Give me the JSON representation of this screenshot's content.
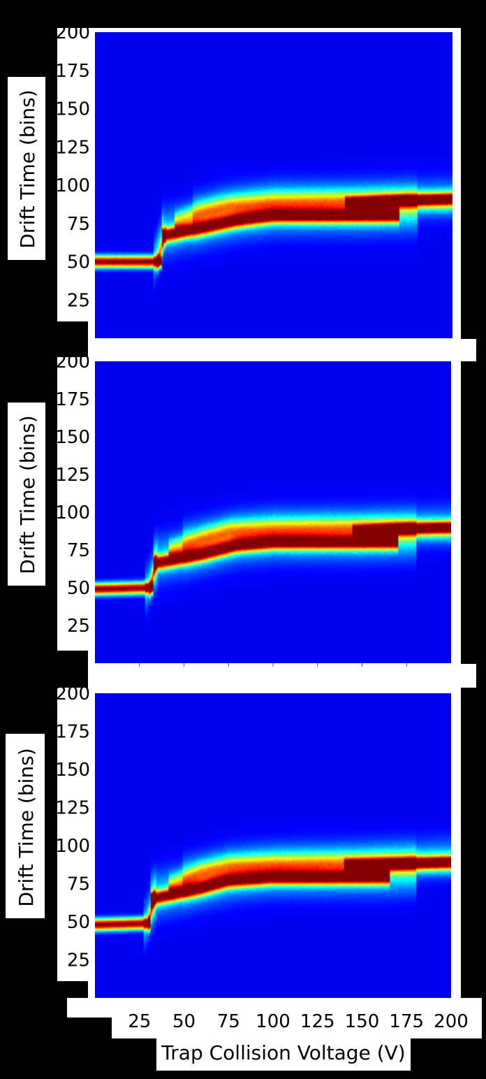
{
  "figure": {
    "ylabel": "Drift Time (bins)",
    "xlabel": "Trap Collision Voltage (V)"
  },
  "colors": {
    "background": "#000000",
    "panel_frame": "#ffffff",
    "heatmap_low": "#00007f",
    "heatmap_high": "#800000",
    "colormap": "jet"
  },
  "chart_data": [
    {
      "type": "heatmap",
      "panel": "top",
      "ylabel": "Drift Time (bins)",
      "xlim": [
        0,
        200
      ],
      "ylim": [
        0,
        200
      ],
      "yticks": [
        25,
        50,
        75,
        100,
        125,
        150,
        175,
        200
      ],
      "ytick_labels": [
        "25",
        "50",
        "75",
        "100",
        "125",
        "150",
        "175",
        "200"
      ],
      "features": [
        {
          "x": [
            0,
            37
          ],
          "y": [
            50,
            50
          ],
          "intensity": 1.0,
          "width": 2.6
        },
        {
          "x": [
            35,
            39
          ],
          "y": [
            50,
            67
          ],
          "intensity": 0.5,
          "width": 4.0
        },
        {
          "x": [
            33,
            38
          ],
          "y": [
            50,
            68
          ],
          "intensity": 0.22,
          "width": 9.0
        },
        {
          "x": [
            38,
            60,
            80,
            100,
            150,
            170
          ],
          "y": [
            67,
            72,
            77,
            80,
            80,
            80
          ],
          "intensity": 0.95,
          "width": 3.0
        },
        {
          "x": [
            38,
            60,
            80,
            100,
            150,
            180
          ],
          "y": [
            69,
            75,
            80,
            83,
            83,
            84
          ],
          "intensity": 0.22,
          "width": 10.0
        },
        {
          "x": [
            45,
            60,
            75,
            100,
            150,
            200
          ],
          "y": [
            75,
            82,
            86,
            88,
            89,
            90
          ],
          "intensity": 0.38,
          "width": 4.5
        },
        {
          "x": [
            55,
            75,
            100,
            150,
            200
          ],
          "y": [
            80,
            86,
            89,
            90,
            92
          ],
          "intensity": 0.15,
          "width": 9.0
        },
        {
          "x": [
            140,
            170,
            200
          ],
          "y": [
            88,
            90,
            91
          ],
          "intensity": 0.9,
          "width": 2.5
        }
      ]
    },
    {
      "type": "heatmap",
      "panel": "middle",
      "ylabel": "Drift Time (bins)",
      "xlim": [
        0,
        200
      ],
      "ylim": [
        0,
        200
      ],
      "yticks": [
        25,
        50,
        75,
        100,
        125,
        150,
        175,
        200
      ],
      "ytick_labels": [
        "25",
        "50",
        "75",
        "100",
        "125",
        "150",
        "175",
        "200"
      ],
      "features": [
        {
          "x": [
            0,
            32
          ],
          "y": [
            49,
            50
          ],
          "intensity": 1.0,
          "width": 2.6
        },
        {
          "x": [
            31,
            34
          ],
          "y": [
            50,
            66
          ],
          "intensity": 0.5,
          "width": 4.0
        },
        {
          "x": [
            29,
            35
          ],
          "y": [
            49,
            67
          ],
          "intensity": 0.22,
          "width": 9.0
        },
        {
          "x": [
            33,
            60,
            80,
            100,
            150,
            170
          ],
          "y": [
            66,
            72,
            78,
            80,
            80,
            80
          ],
          "intensity": 0.95,
          "width": 3.0
        },
        {
          "x": [
            33,
            60,
            80,
            100,
            150,
            180
          ],
          "y": [
            68,
            75,
            81,
            83,
            83,
            84
          ],
          "intensity": 0.22,
          "width": 10.0
        },
        {
          "x": [
            42,
            60,
            75,
            100,
            150,
            200
          ],
          "y": [
            74,
            82,
            87,
            88,
            89,
            89
          ],
          "intensity": 0.38,
          "width": 4.5
        },
        {
          "x": [
            50,
            75,
            100,
            150,
            200
          ],
          "y": [
            79,
            86,
            89,
            90,
            92
          ],
          "intensity": 0.15,
          "width": 9.0
        },
        {
          "x": [
            145,
            170,
            200
          ],
          "y": [
            87,
            89,
            90
          ],
          "intensity": 0.9,
          "width": 2.5
        }
      ]
    },
    {
      "type": "heatmap",
      "panel": "bottom",
      "ylabel": "Drift Time (bins)",
      "xlabel": "Trap Collision Voltage (V)",
      "xlim": [
        0,
        200
      ],
      "ylim": [
        0,
        200
      ],
      "xticks": [
        25,
        50,
        75,
        100,
        125,
        150,
        175,
        200
      ],
      "xtick_labels": [
        "25",
        "50",
        "75",
        "100",
        "125",
        "150",
        "175",
        "200"
      ],
      "yticks": [
        25,
        50,
        75,
        100,
        125,
        150,
        175,
        200
      ],
      "ytick_labels": [
        "25",
        "50",
        "75",
        "100",
        "125",
        "150",
        "175",
        "200"
      ],
      "features": [
        {
          "x": [
            0,
            31
          ],
          "y": [
            48,
            49
          ],
          "intensity": 1.0,
          "width": 2.6
        },
        {
          "x": [
            30,
            33
          ],
          "y": [
            49,
            65
          ],
          "intensity": 0.5,
          "width": 4.0
        },
        {
          "x": [
            28,
            34
          ],
          "y": [
            48,
            66
          ],
          "intensity": 0.22,
          "width": 9.0
        },
        {
          "x": [
            32,
            60,
            75,
            100,
            150,
            165
          ],
          "y": [
            65,
            72,
            77,
            79,
            79,
            79
          ],
          "intensity": 0.95,
          "width": 3.0
        },
        {
          "x": [
            32,
            60,
            80,
            100,
            150,
            180
          ],
          "y": [
            67,
            75,
            80,
            82,
            82,
            83
          ],
          "intensity": 0.22,
          "width": 10.0
        },
        {
          "x": [
            42,
            60,
            75,
            100,
            150,
            200
          ],
          "y": [
            73,
            82,
            86,
            87,
            88,
            89
          ],
          "intensity": 0.38,
          "width": 4.5
        },
        {
          "x": [
            50,
            75,
            100,
            150,
            200
          ],
          "y": [
            78,
            86,
            88,
            90,
            93
          ],
          "intensity": 0.15,
          "width": 9.0
        },
        {
          "x": [
            140,
            170,
            200
          ],
          "y": [
            87,
            88,
            89
          ],
          "intensity": 0.9,
          "width": 2.5
        }
      ]
    }
  ]
}
